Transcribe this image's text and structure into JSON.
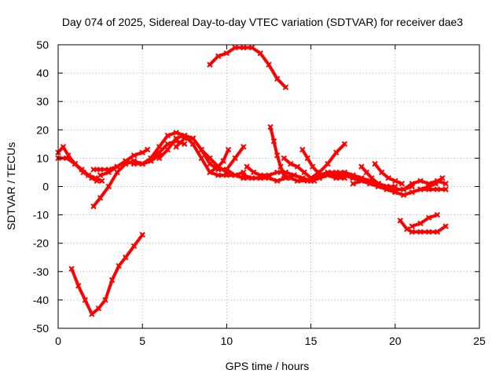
{
  "chart_data": {
    "type": "scatter",
    "title": "Day 074 of 2025, Sidereal Day-to-day VTEC variation (SDTVAR) for receiver dae3",
    "xlabel": "GPS time / hours",
    "ylabel": "SDTVAR / TECUs",
    "xlim": [
      0,
      25
    ],
    "ylim": [
      -50,
      50
    ],
    "x_ticks": [
      0,
      5,
      10,
      15,
      20,
      25
    ],
    "y_ticks": [
      -50,
      -40,
      -30,
      -20,
      -10,
      0,
      10,
      20,
      30,
      40,
      50
    ],
    "x_tick_labels": [
      "0",
      "5",
      "10",
      "15",
      "20",
      "25"
    ],
    "y_tick_labels": [
      "-50",
      "-40",
      "-30",
      "-20",
      "-10",
      "0",
      "10",
      "20",
      "30",
      "40",
      "50"
    ],
    "grid": true,
    "marker_color": "#ff0000",
    "series": [
      {
        "name": "s1",
        "x": [
          0.0,
          0.3,
          0.6,
          1.0,
          1.5,
          2.0,
          2.3
        ],
        "y": [
          12,
          14,
          11,
          8,
          5,
          3,
          2
        ]
      },
      {
        "name": "s2",
        "x": [
          0.0,
          0.5,
          1.0,
          1.4,
          1.8,
          2.2,
          2.6
        ],
        "y": [
          10,
          10,
          8,
          6,
          4,
          3,
          2
        ]
      },
      {
        "name": "s3",
        "x": [
          2.1,
          2.5,
          3.0,
          3.5,
          4.0,
          4.5,
          5.0,
          5.3
        ],
        "y": [
          6,
          6,
          6,
          7,
          9,
          11,
          12,
          13
        ]
      },
      {
        "name": "s4",
        "x": [
          2.1,
          2.5,
          3.0,
          3.5,
          4.0,
          4.5,
          5.0,
          5.5,
          6.0
        ],
        "y": [
          -7,
          -4,
          0,
          5,
          8,
          9,
          8,
          9,
          11
        ]
      },
      {
        "name": "s5",
        "x": [
          2.5,
          3.0,
          3.5,
          4.0,
          4.5,
          5.0,
          5.5,
          6.0,
          6.5,
          7.0,
          7.5
        ],
        "y": [
          4,
          5,
          7,
          9,
          8,
          8,
          9,
          12,
          15,
          16,
          15
        ]
      },
      {
        "name": "s6",
        "x": [
          4.5,
          5.0,
          5.5,
          6.0,
          6.5,
          7.0,
          7.5,
          8.0,
          8.5,
          9.0,
          9.5,
          10.0,
          10.5,
          11.0,
          11.5,
          12.0
        ],
        "y": [
          9,
          8,
          10,
          14,
          18,
          19,
          18,
          15,
          10,
          5,
          4,
          4,
          4,
          3,
          3,
          3
        ]
      },
      {
        "name": "s7",
        "x": [
          6.0,
          6.5,
          7.0,
          7.5,
          8.0,
          8.5,
          9.0,
          9.5,
          10.0,
          10.5,
          11.0
        ],
        "y": [
          10,
          13,
          17,
          18,
          17,
          13,
          10,
          7,
          5,
          4,
          5
        ]
      },
      {
        "name": "s8",
        "x": [
          7.0,
          7.5,
          8.0,
          8.5,
          9.0,
          9.5,
          10.0,
          10.5,
          11.0
        ],
        "y": [
          14,
          17,
          17,
          13,
          8,
          6,
          6,
          4,
          3
        ]
      },
      {
        "name": "s9",
        "x": [
          9.0,
          9.5,
          9.8,
          10.1
        ],
        "y": [
          5,
          7,
          9,
          13
        ]
      },
      {
        "name": "s10",
        "x": [
          10.0,
          10.5,
          11.0
        ],
        "y": [
          6,
          10,
          14
        ]
      },
      {
        "name": "s11",
        "x": [
          0.8,
          1.2,
          1.6,
          2.0,
          2.4,
          2.8,
          3.2,
          3.6,
          4.0,
          4.5,
          5.0
        ],
        "y": [
          -29,
          -35,
          -40,
          -45,
          -43,
          -40,
          -33,
          -28,
          -25,
          -21,
          -17
        ]
      },
      {
        "name": "s12",
        "x": [
          9.0,
          9.5,
          10.0,
          10.5,
          11.0,
          11.5,
          12.0,
          12.5,
          13.0,
          13.5
        ],
        "y": [
          43,
          46,
          47,
          49,
          49,
          49,
          47,
          43,
          38,
          35
        ]
      },
      {
        "name": "s13",
        "x": [
          11.0,
          11.5,
          12.0,
          12.5,
          13.0,
          13.5,
          14.0,
          14.5,
          15.0,
          15.5,
          16.0,
          16.5,
          17.0
        ],
        "y": [
          4,
          3,
          3,
          3,
          2,
          3,
          4,
          3,
          2,
          3,
          4,
          3,
          3
        ]
      },
      {
        "name": "s14",
        "x": [
          11.2,
          11.6,
          12.0,
          12.5,
          13.0,
          13.5,
          14.0,
          14.5,
          15.0,
          15.5,
          16.0,
          16.5,
          17.0,
          17.5,
          18.0,
          18.5,
          19.0,
          19.5,
          20.0
        ],
        "y": [
          7,
          5,
          4,
          4,
          5,
          5,
          4,
          3,
          2,
          3,
          4,
          4,
          4,
          3,
          3,
          2,
          1,
          0,
          -2
        ]
      },
      {
        "name": "s15",
        "x": [
          12.6,
          12.8,
          13.0,
          13.2,
          13.4,
          13.8,
          14.2,
          14.8,
          15.2
        ],
        "y": [
          21,
          16,
          11,
          7,
          4,
          3,
          2,
          2,
          2
        ]
      },
      {
        "name": "s16",
        "x": [
          13.4,
          13.8,
          14.2,
          14.6,
          15.0,
          15.5,
          16.0,
          16.5,
          17.0,
          17.5,
          18.0
        ],
        "y": [
          10,
          8,
          7,
          5,
          3,
          4,
          5,
          5,
          5,
          4,
          3
        ]
      },
      {
        "name": "s17",
        "x": [
          14.5,
          14.8,
          15.1,
          15.4,
          15.7,
          16.0,
          16.5,
          17.0,
          17.5,
          18.0,
          18.5,
          19.0,
          19.5,
          20.0,
          20.5,
          21.0
        ],
        "y": [
          13,
          10,
          7,
          5,
          4,
          4,
          4,
          4,
          3,
          2,
          2,
          1,
          0,
          -1,
          -1,
          0
        ]
      },
      {
        "name": "s18",
        "x": [
          15.0,
          15.5,
          16.0,
          16.5,
          17.0
        ],
        "y": [
          3,
          5,
          8,
          12,
          15
        ]
      },
      {
        "name": "s19",
        "x": [
          17.5,
          18.0,
          18.5,
          19.0,
          19.5,
          20.0,
          20.5,
          21.0,
          21.5,
          22.0,
          22.5,
          23.0
        ],
        "y": [
          1,
          2,
          1,
          0,
          -1,
          -2,
          -3,
          -2,
          -1,
          -1,
          -1,
          -1
        ]
      },
      {
        "name": "s20",
        "x": [
          18.0,
          18.3,
          18.6,
          19.0,
          19.5,
          20.0
        ],
        "y": [
          7,
          5,
          3,
          1,
          0,
          0
        ]
      },
      {
        "name": "s21",
        "x": [
          18.8,
          19.2,
          19.6,
          20.0,
          20.4
        ],
        "y": [
          8,
          5,
          3,
          2,
          1
        ]
      },
      {
        "name": "s22",
        "x": [
          20.5,
          21.0,
          21.5,
          22.0,
          22.5,
          23.0
        ],
        "y": [
          -1,
          1,
          2,
          1,
          2,
          1
        ]
      },
      {
        "name": "s23",
        "x": [
          21.5,
          22.0,
          22.4,
          22.8
        ],
        "y": [
          -1,
          0,
          1,
          3
        ]
      },
      {
        "name": "s24",
        "x": [
          20.3,
          20.7,
          21.0,
          21.5,
          22.0,
          22.5,
          23.0
        ],
        "y": [
          -12,
          -15,
          -16,
          -16,
          -16,
          -16,
          -14
        ]
      },
      {
        "name": "s25",
        "x": [
          21.0,
          21.5,
          22.0,
          22.5
        ],
        "y": [
          -14,
          -13,
          -11,
          -10
        ]
      }
    ]
  }
}
